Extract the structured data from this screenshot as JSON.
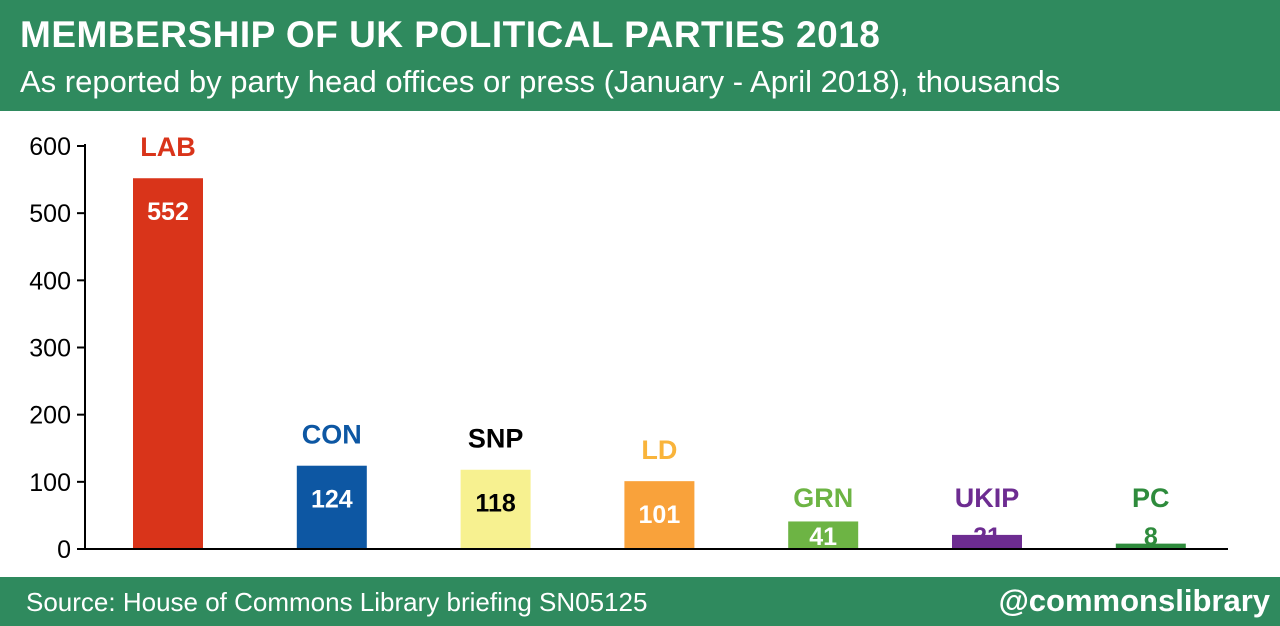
{
  "header": {
    "title": "MEMBERSHIP OF UK POLITICAL PARTIES 2018",
    "subtitle": "As reported by party head offices or press (January - April 2018), thousands"
  },
  "footer": {
    "source": "Source: House of Commons Library briefing SN05125",
    "handle": "@commonslibrary"
  },
  "chart_data": {
    "type": "bar",
    "title": "MEMBERSHIP OF UK POLITICAL PARTIES 2018",
    "subtitle": "As reported by party head offices or press (January - April 2018), thousands",
    "categories": [
      "LAB",
      "CON",
      "SNP",
      "LD",
      "GRN",
      "UKIP",
      "PC"
    ],
    "values": [
      552,
      124,
      118,
      101,
      41,
      21,
      8
    ],
    "value_labels": [
      "552",
      "124",
      "118",
      "101",
      "41",
      "21",
      "8"
    ],
    "bar_colors": [
      "#d9341a",
      "#0d57a3",
      "#f7f190",
      "#f9a23b",
      "#6db444",
      "#6d2c91",
      "#2e8b3c"
    ],
    "category_label_colors": [
      "#d9341a",
      "#0d57a3",
      "#000000",
      "#f9b43b",
      "#6db444",
      "#6d2c91",
      "#2e8b3c"
    ],
    "value_label_colors": [
      "#ffffff",
      "#ffffff",
      "#000000",
      "#ffffff",
      "#ffffff",
      "#6d2c91",
      "#2e8b3c"
    ],
    "y_ticks": [
      0,
      100,
      200,
      300,
      400,
      500,
      600
    ],
    "ylim": [
      0,
      600
    ],
    "xlabel": "",
    "ylabel": "",
    "grid": false,
    "legend": "none"
  }
}
